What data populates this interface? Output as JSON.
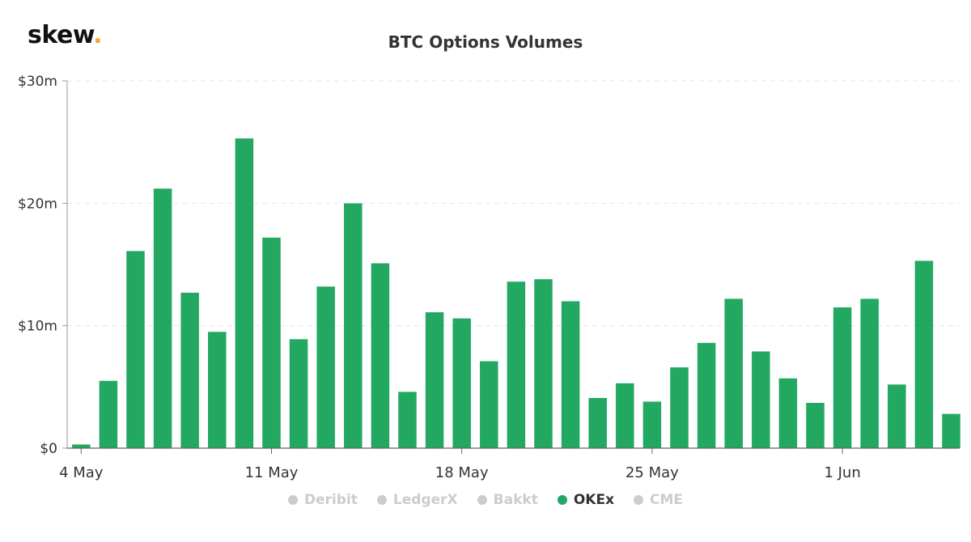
{
  "brand": {
    "name": "skew",
    "dot": ".",
    "dot_color": "#f5a623"
  },
  "chart_data": {
    "type": "bar",
    "title": "BTC Options Volumes",
    "xlabel": "",
    "ylabel": "",
    "ylim": [
      0,
      30
    ],
    "yticks": [
      {
        "value": 0,
        "label": "$0"
      },
      {
        "value": 10,
        "label": "$10m"
      },
      {
        "value": 20,
        "label": "$20m"
      },
      {
        "value": 30,
        "label": "$30m"
      }
    ],
    "grid": true,
    "legend_position": "bottom-center",
    "categories": [
      "2020-05-04",
      "2020-05-05",
      "2020-05-06",
      "2020-05-07",
      "2020-05-08",
      "2020-05-09",
      "2020-05-10",
      "2020-05-11",
      "2020-05-12",
      "2020-05-13",
      "2020-05-14",
      "2020-05-15",
      "2020-05-16",
      "2020-05-17",
      "2020-05-18",
      "2020-05-19",
      "2020-05-20",
      "2020-05-21",
      "2020-05-22",
      "2020-05-23",
      "2020-05-24",
      "2020-05-25",
      "2020-05-26",
      "2020-05-27",
      "2020-05-28",
      "2020-05-29",
      "2020-05-30",
      "2020-05-31",
      "2020-06-01",
      "2020-06-02",
      "2020-06-03",
      "2020-06-04",
      "2020-06-05"
    ],
    "xticks": [
      {
        "index": 0,
        "label": "4 May"
      },
      {
        "index": 7,
        "label": "11 May"
      },
      {
        "index": 14,
        "label": "18 May"
      },
      {
        "index": 21,
        "label": "25 May"
      },
      {
        "index": 28,
        "label": "1 Jun"
      }
    ],
    "series": [
      {
        "name": "OKEx",
        "color": "#23a862",
        "values": [
          0.3,
          5.5,
          16.1,
          21.2,
          12.7,
          9.5,
          25.3,
          17.2,
          8.9,
          13.2,
          20.0,
          15.1,
          4.6,
          11.1,
          10.6,
          7.1,
          13.6,
          13.8,
          12.0,
          4.1,
          5.3,
          3.8,
          6.6,
          8.6,
          12.2,
          7.9,
          5.7,
          3.7,
          11.5,
          12.2,
          5.2,
          15.3,
          2.8
        ]
      }
    ]
  },
  "legend": {
    "items": [
      {
        "label": "Deribit",
        "active": false
      },
      {
        "label": "LedgerX",
        "active": false
      },
      {
        "label": "Bakkt",
        "active": false
      },
      {
        "label": "OKEx",
        "active": true
      },
      {
        "label": "CME",
        "active": false
      }
    ]
  }
}
